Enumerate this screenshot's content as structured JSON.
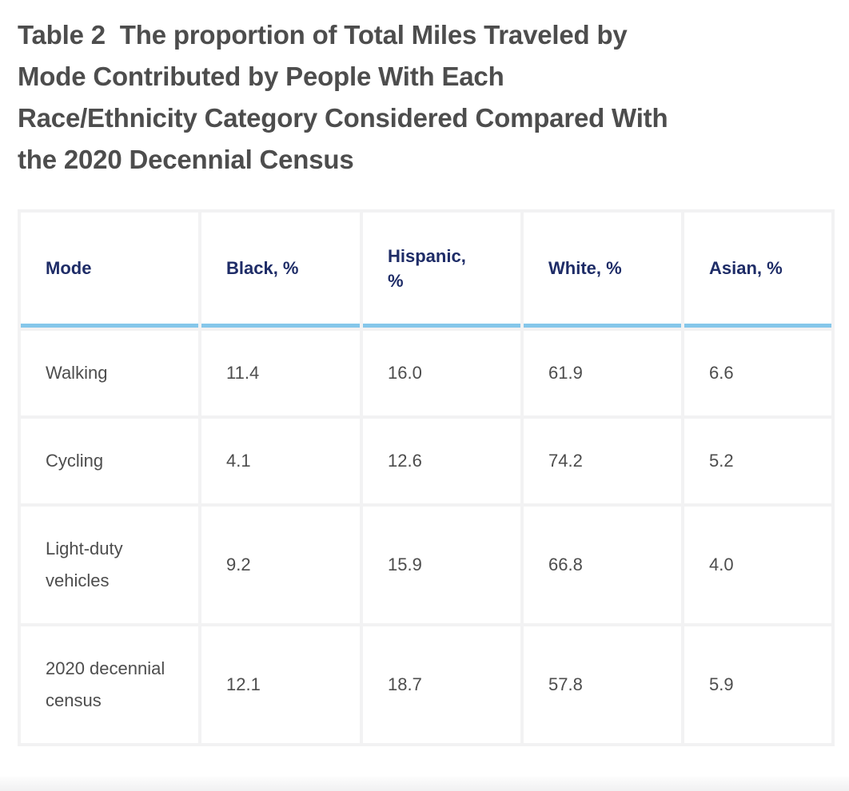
{
  "title": {
    "full_text": "Table 2  The proportion of Total Miles Traveled by Mode Contributed by People With Each Race/Ethnicity Category Considered Compared With the 2020 Decennial Census",
    "lines": [
      "Table 2  The proportion of Total Miles Traveled by",
      "Mode Contributed by People With Each",
      "Race/Ethnicity Category Considered Compared With",
      "the 2020 Decennial Census"
    ]
  },
  "table": {
    "headers": {
      "mode": "Mode",
      "black": "Black, %",
      "hispanic": "Hispanic, %",
      "white": "White, %",
      "asian": "Asian, %"
    },
    "rows": [
      {
        "mode": "Walking",
        "black": "11.4",
        "hispanic": "16.0",
        "white": "61.9",
        "asian": "6.6"
      },
      {
        "mode": "Cycling",
        "black": "4.1",
        "hispanic": "12.6",
        "white": "74.2",
        "asian": "5.2"
      },
      {
        "mode": "Light-duty vehicles",
        "black": "9.2",
        "hispanic": "15.9",
        "white": "66.8",
        "asian": "4.0"
      },
      {
        "mode": "2020 decennial census",
        "black": "12.1",
        "hispanic": "18.7",
        "white": "57.8",
        "asian": "5.9"
      }
    ]
  },
  "colors": {
    "title_text": "#4d4d4d",
    "header_text": "#1e2c67",
    "header_underline": "#85c7ea",
    "body_text": "#4d4d4d",
    "grid_gap": "#f2f2f3"
  }
}
